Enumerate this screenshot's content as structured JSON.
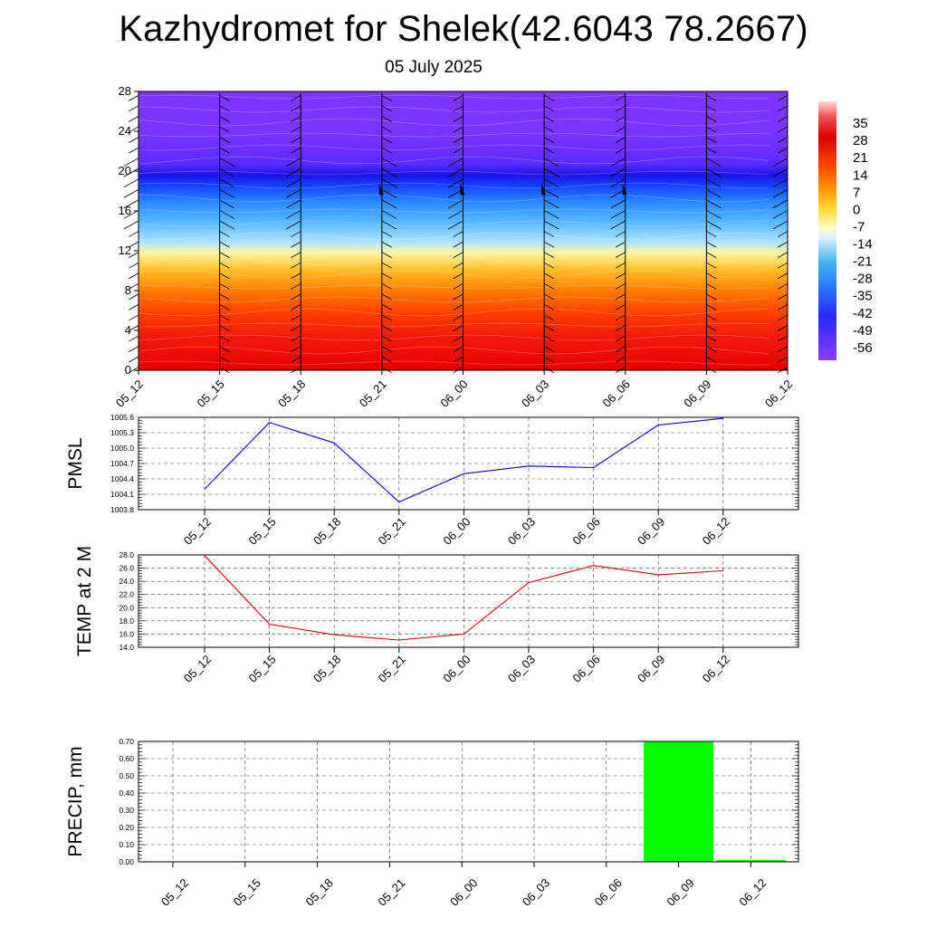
{
  "title": "Kazhydromet for Shelek(42.6043 78.2667)",
  "date": "05 July 2025",
  "time_labels": [
    "05_12",
    "05_15",
    "05_18",
    "05_21",
    "06_00",
    "06_03",
    "06_06",
    "06_09",
    "06_12"
  ],
  "colors": {
    "pmsl_line": "#0000dd",
    "temp_line": "#dd0000",
    "precip_bar": "#00ff00"
  },
  "chart_data": [
    {
      "type": "heatmap",
      "id": "profile",
      "x": [
        "05_12",
        "05_15",
        "05_18",
        "05_21",
        "06_00",
        "06_03",
        "06_06",
        "06_09",
        "06_12"
      ],
      "ylim": [
        0,
        28
      ],
      "yticks": [
        0,
        4,
        8,
        12,
        16,
        20,
        24,
        28
      ],
      "colorbar": {
        "labels": [
          "35",
          "28",
          "21",
          "14",
          "7",
          "0",
          "-7",
          "-14",
          "-21",
          "-28",
          "-35",
          "-42",
          "-49",
          "-56"
        ],
        "range": [
          -63,
          42
        ]
      }
    },
    {
      "type": "line",
      "id": "pmsl",
      "ylabel": "PMSL",
      "categories": [
        "05_12",
        "05_15",
        "05_18",
        "05_21",
        "06_00",
        "06_03",
        "06_06",
        "06_09",
        "06_12"
      ],
      "values": [
        1004.2,
        1005.5,
        1005.1,
        1003.95,
        1004.5,
        1004.65,
        1004.62,
        1005.45,
        1005.58
      ],
      "ylim": [
        1003.8,
        1005.6
      ],
      "yticks": [
        "1003.8",
        "1004.1",
        "1004.4",
        "1004.7",
        "1005.0",
        "1005.3",
        "1005.6"
      ]
    },
    {
      "type": "line",
      "id": "temp",
      "ylabel": "TEMP at 2 M",
      "categories": [
        "05_12",
        "05_15",
        "05_18",
        "05_21",
        "06_00",
        "06_03",
        "06_06",
        "06_09",
        "06_12"
      ],
      "values": [
        27.9,
        17.5,
        15.9,
        15.1,
        16.0,
        23.8,
        26.4,
        25.0,
        25.6
      ],
      "ylim": [
        14.0,
        28.0
      ],
      "yticks": [
        "14.0",
        "16.0",
        "18.0",
        "20.0",
        "22.0",
        "24.0",
        "26.0",
        "28.0"
      ]
    },
    {
      "type": "bar",
      "id": "precip",
      "ylabel": "PRECIP, mm",
      "categories": [
        "05_12",
        "05_15",
        "05_18",
        "05_21",
        "06_00",
        "06_03",
        "06_06",
        "06_09",
        "06_12"
      ],
      "values": [
        0,
        0,
        0,
        0,
        0,
        0,
        0,
        0.7,
        0.01
      ],
      "ylim": [
        0,
        0.7
      ],
      "yticks": [
        "0.00",
        "0.10",
        "0.20",
        "0.30",
        "0.40",
        "0.50",
        "0.60",
        "0.70"
      ]
    }
  ]
}
